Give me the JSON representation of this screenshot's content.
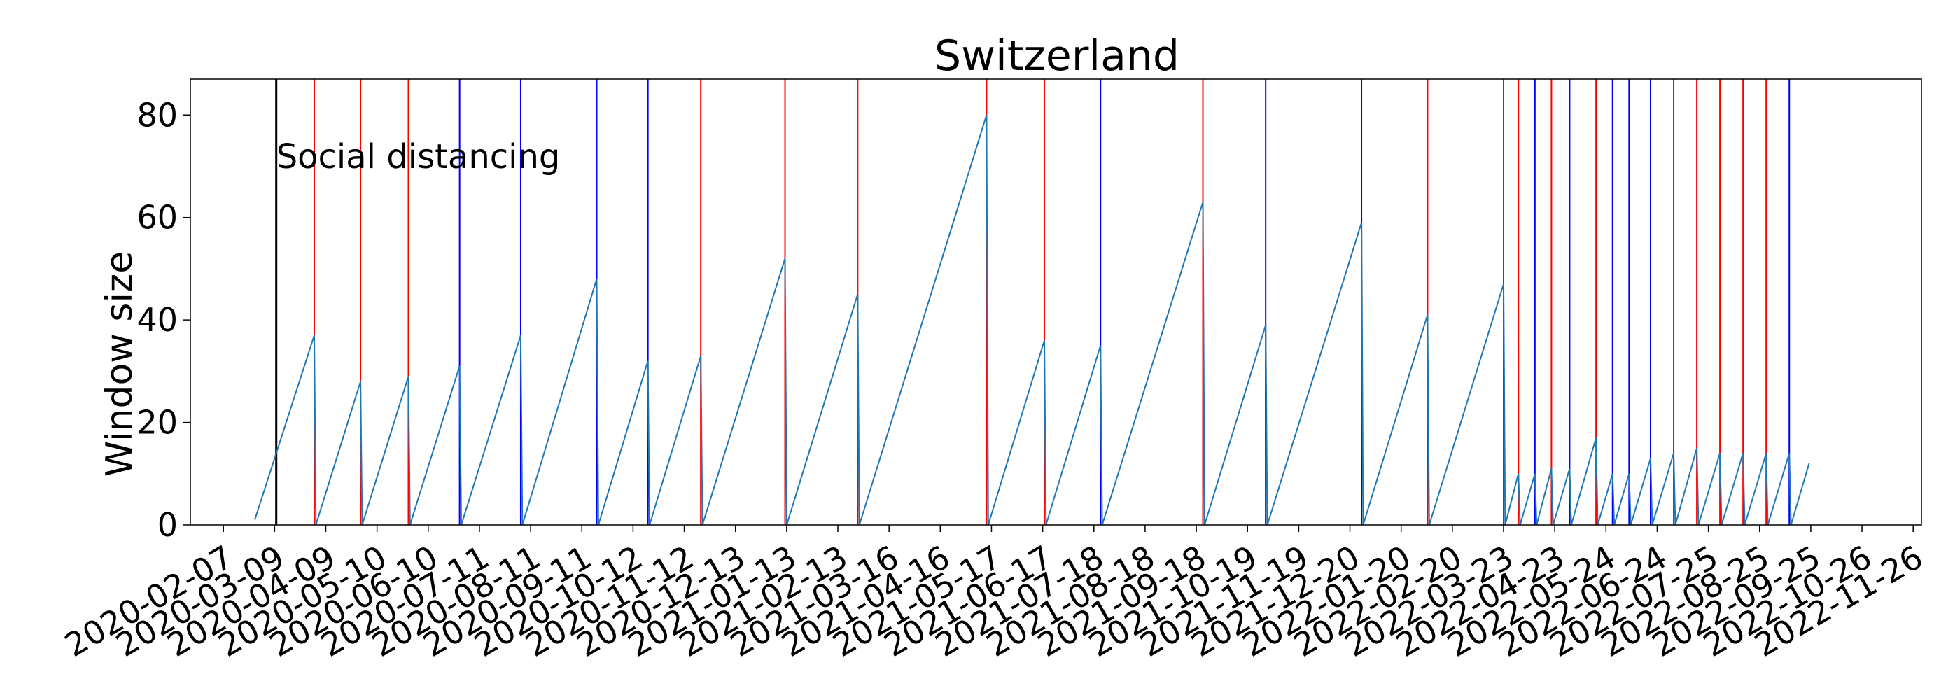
{
  "chart_data": {
    "type": "line",
    "title": "Switzerland",
    "xlabel": "",
    "ylabel": "Window size",
    "xlim": [
      "2020-01-18",
      "2022-12-01"
    ],
    "ylim": [
      0,
      87
    ],
    "yticks": [
      0,
      20,
      40,
      60,
      80
    ],
    "xticks": [
      "2020-02-07",
      "2020-03-09",
      "2020-04-09",
      "2020-05-10",
      "2020-06-10",
      "2020-07-11",
      "2020-08-11",
      "2020-09-11",
      "2020-10-12",
      "2020-11-12",
      "2020-12-13",
      "2021-01-13",
      "2021-02-13",
      "2021-03-16",
      "2021-04-16",
      "2021-05-17",
      "2021-06-17",
      "2021-07-18",
      "2021-08-18",
      "2021-09-18",
      "2021-10-19",
      "2021-11-19",
      "2021-12-20",
      "2022-01-20",
      "2022-02-20",
      "2022-03-23",
      "2022-04-23",
      "2022-05-24",
      "2022-06-24",
      "2022-07-25",
      "2022-08-25",
      "2022-09-25",
      "2022-10-26",
      "2022-11-26"
    ],
    "grid": false,
    "annotation": {
      "text": "Social distancing",
      "date": "2020-03-10",
      "color": "#000000"
    },
    "series": [
      {
        "color": "#1f77b4",
        "points": [
          [
            "2020-02-26",
            1
          ],
          [
            "2020-04-02",
            37
          ],
          [
            "2020-04-03",
            0
          ],
          [
            "2020-04-30",
            28
          ],
          [
            "2020-05-01",
            0
          ],
          [
            "2020-05-29",
            29
          ],
          [
            "2020-05-30",
            0
          ],
          [
            "2020-06-29",
            31
          ],
          [
            "2020-06-30",
            0
          ],
          [
            "2020-08-05",
            37
          ],
          [
            "2020-08-06",
            0
          ],
          [
            "2020-09-20",
            48
          ],
          [
            "2020-09-21",
            0
          ],
          [
            "2020-10-21",
            32
          ],
          [
            "2020-10-22",
            0
          ],
          [
            "2020-11-22",
            33
          ],
          [
            "2020-11-23",
            0
          ],
          [
            "2021-01-12",
            52
          ],
          [
            "2021-01-13",
            0
          ],
          [
            "2021-02-25",
            45
          ],
          [
            "2021-02-26",
            0
          ],
          [
            "2021-05-14",
            80
          ],
          [
            "2021-05-15",
            0
          ],
          [
            "2021-06-18",
            36
          ],
          [
            "2021-06-19",
            0
          ],
          [
            "2021-07-22",
            35
          ],
          [
            "2021-07-23",
            0
          ],
          [
            "2021-09-22",
            63
          ],
          [
            "2021-09-23",
            0
          ],
          [
            "2021-10-30",
            39
          ],
          [
            "2021-10-31",
            0
          ],
          [
            "2021-12-27",
            59
          ],
          [
            "2021-12-28",
            0
          ],
          [
            "2022-02-05",
            41
          ],
          [
            "2022-02-06",
            0
          ],
          [
            "2022-03-23",
            47
          ],
          [
            "2022-03-24",
            0
          ],
          [
            "2022-04-01",
            10
          ],
          [
            "2022-04-02",
            0
          ],
          [
            "2022-04-11",
            10
          ],
          [
            "2022-04-12",
            0
          ],
          [
            "2022-04-21",
            11
          ],
          [
            "2022-04-22",
            0
          ],
          [
            "2022-05-02",
            11
          ],
          [
            "2022-05-03",
            0
          ],
          [
            "2022-05-18",
            17
          ],
          [
            "2022-05-19",
            0
          ],
          [
            "2022-05-28",
            10
          ],
          [
            "2022-05-29",
            0
          ],
          [
            "2022-06-07",
            10
          ],
          [
            "2022-06-08",
            0
          ],
          [
            "2022-06-20",
            13
          ],
          [
            "2022-06-21",
            0
          ],
          [
            "2022-07-04",
            14
          ],
          [
            "2022-07-05",
            0
          ],
          [
            "2022-07-18",
            15
          ],
          [
            "2022-07-19",
            0
          ],
          [
            "2022-08-01",
            14
          ],
          [
            "2022-08-02",
            0
          ],
          [
            "2022-08-15",
            14
          ],
          [
            "2022-08-16",
            0
          ],
          [
            "2022-08-29",
            14
          ],
          [
            "2022-08-30",
            0
          ],
          [
            "2022-09-12",
            14
          ],
          [
            "2022-09-13",
            0
          ],
          [
            "2022-09-24",
            12
          ]
        ]
      }
    ],
    "vlines": [
      {
        "date": "2020-04-02",
        "color": "#ff0000"
      },
      {
        "date": "2020-04-30",
        "color": "#ff0000"
      },
      {
        "date": "2020-05-29",
        "color": "#ff0000"
      },
      {
        "date": "2020-06-29",
        "color": "#0000ff"
      },
      {
        "date": "2020-08-05",
        "color": "#0000ff"
      },
      {
        "date": "2020-09-20",
        "color": "#0000ff"
      },
      {
        "date": "2020-10-21",
        "color": "#0000ff"
      },
      {
        "date": "2020-11-22",
        "color": "#ff0000"
      },
      {
        "date": "2021-01-12",
        "color": "#ff0000"
      },
      {
        "date": "2021-02-25",
        "color": "#ff0000"
      },
      {
        "date": "2021-05-14",
        "color": "#ff0000"
      },
      {
        "date": "2021-06-18",
        "color": "#ff0000"
      },
      {
        "date": "2021-07-22",
        "color": "#0000ff"
      },
      {
        "date": "2021-09-22",
        "color": "#ff0000"
      },
      {
        "date": "2021-10-30",
        "color": "#0000ff"
      },
      {
        "date": "2021-12-27",
        "color": "#0000ff"
      },
      {
        "date": "2022-02-05",
        "color": "#ff0000"
      },
      {
        "date": "2022-03-23",
        "color": "#ff0000"
      },
      {
        "date": "2022-04-01",
        "color": "#ff0000"
      },
      {
        "date": "2022-04-11",
        "color": "#0000ff"
      },
      {
        "date": "2022-04-21",
        "color": "#ff0000"
      },
      {
        "date": "2022-05-02",
        "color": "#0000ff"
      },
      {
        "date": "2022-05-18",
        "color": "#ff0000"
      },
      {
        "date": "2022-05-28",
        "color": "#0000ff"
      },
      {
        "date": "2022-06-07",
        "color": "#0000ff"
      },
      {
        "date": "2022-06-20",
        "color": "#0000ff"
      },
      {
        "date": "2022-07-04",
        "color": "#ff0000"
      },
      {
        "date": "2022-07-18",
        "color": "#ff0000"
      },
      {
        "date": "2022-08-01",
        "color": "#ff0000"
      },
      {
        "date": "2022-08-15",
        "color": "#ff0000"
      },
      {
        "date": "2022-08-29",
        "color": "#ff0000"
      },
      {
        "date": "2022-09-12",
        "color": "#0000ff"
      }
    ]
  }
}
